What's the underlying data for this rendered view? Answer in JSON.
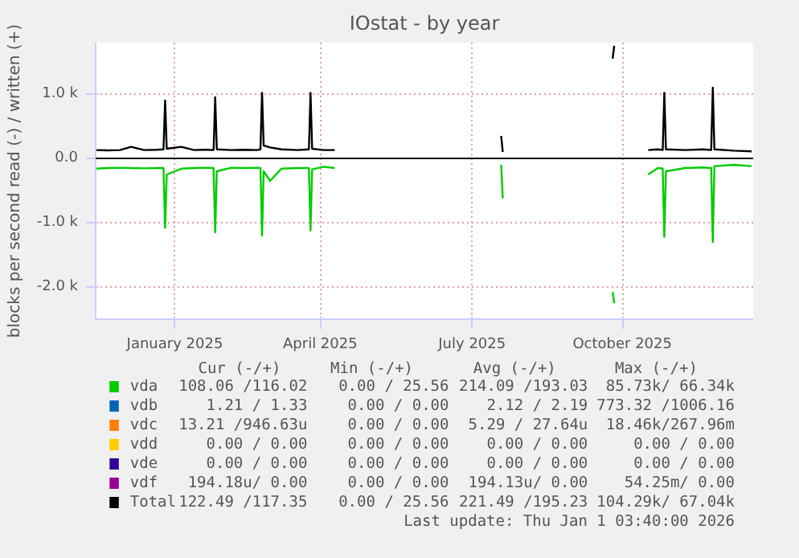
{
  "chart_data": {
    "type": "line",
    "title": "IOstat - by year",
    "ylabel": "blocks per second read (-) / written (+)",
    "x": [
      "2024-11-20",
      "2024-11-27",
      "2024-12-05",
      "2024-12-12",
      "2024-12-20",
      "2024-12-28",
      "2025-01-01",
      "2025-01-02",
      "2025-01-03",
      "2025-01-12",
      "2025-01-20",
      "2025-01-28",
      "2025-02-01",
      "2025-02-02",
      "2025-02-03",
      "2025-02-12",
      "2025-02-20",
      "2025-02-28",
      "2025-03-02",
      "2025-03-03",
      "2025-03-04",
      "2025-03-08",
      "2025-03-15",
      "2025-03-25",
      "2025-04-01",
      "2025-04-02",
      "2025-04-03",
      "2025-04-10",
      "2025-04-17",
      "2025-04-18",
      "2025-07-29",
      "2025-07-30",
      "2025-07-31",
      "2025-10-06",
      "2025-10-07",
      "2025-10-08",
      "2025-10-28",
      "2025-11-03",
      "2025-11-06",
      "2025-11-07",
      "2025-11-08",
      "2025-11-20",
      "2025-12-01",
      "2025-12-06",
      "2025-12-07",
      "2025-12-08",
      "2025-12-20",
      "2025-12-31"
    ],
    "series": [
      {
        "name": "vda",
        "color": "#00cc00",
        "values": [
          -160,
          -150,
          -145,
          -150,
          -155,
          -150,
          -150,
          -1080,
          -250,
          -160,
          -150,
          -145,
          -150,
          -1150,
          -200,
          -145,
          -150,
          -145,
          -150,
          -1200,
          -200,
          -350,
          -160,
          -150,
          -150,
          -1120,
          -170,
          -130,
          -150,
          null,
          -100,
          -620,
          null,
          -2080,
          -2250,
          null,
          -250,
          -150,
          -160,
          -1220,
          -200,
          -150,
          -140,
          -150,
          -1300,
          -120,
          -100,
          -120
        ]
      },
      {
        "name": "vdb",
        "color": "#0066b3",
        "values": [
          null,
          null,
          null,
          null,
          null,
          null,
          null,
          null,
          null,
          null,
          null,
          null,
          null,
          null,
          null,
          null,
          null,
          null,
          null,
          null,
          null,
          null,
          null,
          null,
          null,
          null,
          null,
          null,
          null,
          null,
          null,
          null,
          null,
          null,
          null,
          null,
          null,
          null,
          null,
          null,
          null,
          null,
          null,
          null,
          null,
          null,
          null,
          null
        ]
      },
      {
        "name": "vdc",
        "color": "#ff8000",
        "values": [
          null,
          null,
          null,
          null,
          null,
          null,
          null,
          null,
          null,
          null,
          null,
          null,
          null,
          null,
          null,
          null,
          null,
          null,
          null,
          null,
          null,
          null,
          null,
          null,
          null,
          null,
          null,
          null,
          null,
          null,
          null,
          null,
          null,
          null,
          null,
          null,
          null,
          null,
          null,
          null,
          null,
          null,
          null,
          null,
          null,
          null,
          null,
          null
        ]
      },
      {
        "name": "vdd",
        "color": "#ffcc00",
        "values": [
          null,
          null,
          null,
          null,
          null,
          null,
          null,
          null,
          null,
          null,
          null,
          null,
          null,
          null,
          null,
          null,
          null,
          null,
          null,
          null,
          null,
          null,
          null,
          null,
          null,
          null,
          null,
          null,
          null,
          null,
          null,
          null,
          null,
          null,
          null,
          null,
          null,
          null,
          null,
          null,
          null,
          null,
          null,
          null,
          null,
          null,
          null,
          null
        ]
      },
      {
        "name": "vde",
        "color": "#330099",
        "values": [
          null,
          null,
          null,
          null,
          null,
          null,
          null,
          null,
          null,
          null,
          null,
          null,
          null,
          null,
          null,
          null,
          null,
          null,
          null,
          null,
          null,
          null,
          null,
          null,
          null,
          null,
          null,
          null,
          null,
          null,
          null,
          null,
          null,
          null,
          null,
          null,
          null,
          null,
          null,
          null,
          null,
          null,
          null,
          null,
          null,
          null,
          null,
          null
        ]
      },
      {
        "name": "vdf",
        "color": "#990099",
        "values": [
          null,
          null,
          null,
          null,
          null,
          null,
          null,
          null,
          null,
          null,
          null,
          null,
          null,
          null,
          null,
          null,
          null,
          null,
          null,
          null,
          null,
          null,
          null,
          null,
          null,
          null,
          null,
          null,
          null,
          null,
          null,
          null,
          null,
          null,
          null,
          null,
          null,
          null,
          null,
          null,
          null,
          null,
          null,
          null,
          null,
          null,
          null,
          null
        ]
      },
      {
        "name": "Total",
        "color": "#000000",
        "values": [
          130,
          125,
          130,
          180,
          130,
          135,
          140,
          900,
          150,
          180,
          130,
          135,
          130,
          950,
          140,
          130,
          135,
          130,
          140,
          1020,
          200,
          170,
          140,
          130,
          140,
          1020,
          150,
          130,
          130,
          null,
          350,
          100,
          null,
          1550,
          1750,
          null,
          130,
          140,
          130,
          1020,
          140,
          130,
          140,
          130,
          1100,
          140,
          120,
          110
        ]
      }
    ],
    "xlim": [
      "2024-11-20",
      "2026-01-01"
    ],
    "xticks": [
      {
        "value": "2025-01-08",
        "label": "January 2025"
      },
      {
        "value": "2025-04-08",
        "label": "April 2025"
      },
      {
        "value": "2025-07-11",
        "label": "July 2025"
      },
      {
        "value": "2025-10-12",
        "label": "October 2025"
      }
    ],
    "ylim": [
      -2500,
      1800
    ],
    "yticks": [
      {
        "value": -2000,
        "label": "-2.0 k"
      },
      {
        "value": -1000,
        "label": "-1.0 k"
      },
      {
        "value": 0,
        "label": "0.0"
      },
      {
        "value": 1000,
        "label": "1.0 k"
      }
    ],
    "ref_lines": [
      {
        "axis": "y",
        "value": 0,
        "color": "#000000"
      }
    ],
    "grid": true,
    "line_style": "solid",
    "legend": "bottom",
    "annotations": [
      "Cur (-/+)",
      "Min (-/+)",
      "Avg (-/+)",
      "Max (-/+)",
      "108.06 /116.02",
      "0.00 / 25.56",
      "214.09 /193.03",
      "85.73k/ 66.34k",
      "1.21 / 1.33",
      "0.00 / 0.00",
      "2.12 / 2.19",
      "773.32 /1006.16",
      "13.21 /946.63u",
      "0.00 / 0.00",
      "5.29 / 27.64u",
      "18.46k/267.96m",
      "0.00 / 0.00",
      "0.00 / 0.00",
      "0.00 / 0.00",
      "0.00 / 0.00",
      "0.00 / 0.00",
      "0.00 / 0.00",
      "0.00 / 0.00",
      "0.00 / 0.00",
      "194.18u/ 0.00",
      "0.00 / 0.00",
      "194.13u/ 0.00",
      "54.25m/ 0.00",
      "122.49 /117.35",
      "0.00 / 25.56",
      "221.49 /195.23",
      "104.29k/ 67.04k",
      "Last update: Thu Jan 1 03:40:00 2026"
    ]
  }
}
